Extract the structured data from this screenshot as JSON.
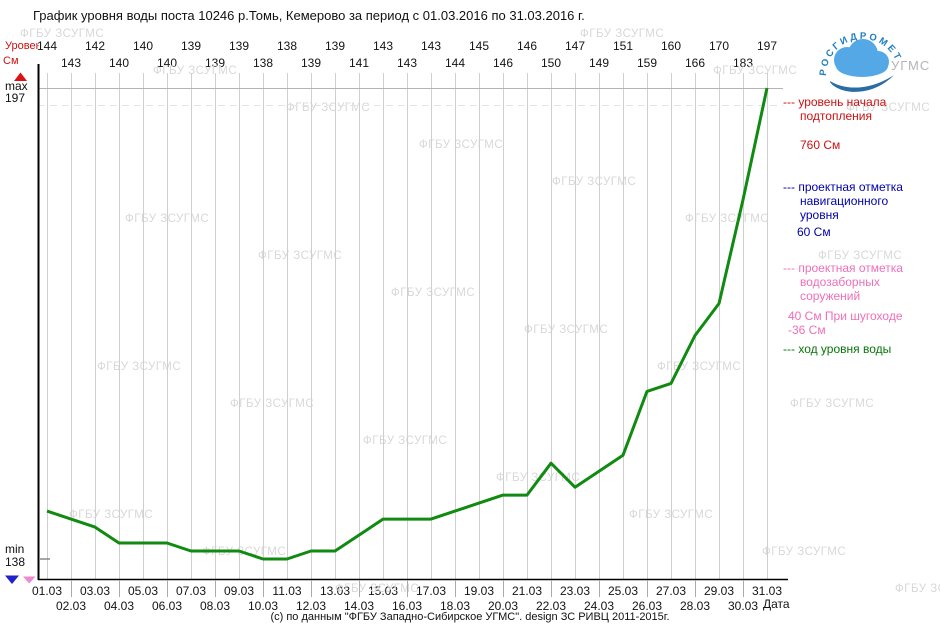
{
  "title": "График уровня воды поста 10246 р.Томь, Кемерово за период с 01.03.2016 по 31.03.2016 г.",
  "y_axis": {
    "label_line1": "Уровень",
    "label_line2": "См",
    "max_label": "max",
    "max_value": "197",
    "min_label": "min",
    "min_value": "138"
  },
  "x_axis": {
    "label": "Дата"
  },
  "legend": [
    {
      "color": "#cc1111",
      "dash": "---",
      "lines": [
        "уровень начала",
        "подтопления"
      ],
      "value_lines": [
        "760 См"
      ]
    },
    {
      "color": "#0000a8",
      "dash": "---",
      "lines": [
        "проектная отметка",
        "навигационного",
        "уровня"
      ],
      "value_lines": [
        "60 См"
      ]
    },
    {
      "color": "#ef6fb7",
      "dash": "---",
      "lines": [
        "проектная отметка",
        "водозаборных",
        "соружений"
      ],
      "value_lines": [
        "40 См При шугоходе",
        "-36 См"
      ]
    },
    {
      "color": "#077607",
      "dash": "---",
      "lines": [
        "ход уровня воды"
      ],
      "value_lines": []
    }
  ],
  "watermark": {
    "text": "ФГБУ ЗСУГМС",
    "color": "#d8d8d8"
  },
  "footer": "(с) по данным \"ФГБУ Западно-Сибирское УГМС\". design ЗС РИВЦ 2011-2015г.",
  "logo": {
    "arc_text": "РОСГИДРОМЕТ",
    "side_text": "УГМС"
  },
  "colors": {
    "line_green": "#118a11",
    "grid": "#cfcfcf",
    "axis": "#000000",
    "red": "#cc1111",
    "blue": "#0000a8",
    "pink": "#ef6fb7",
    "watermark": "#d8d8d8"
  },
  "chart_data": {
    "type": "line",
    "title": "График уровня воды поста 10246 р.Томь, Кемерово за период с 01.03.2016 по 31.03.2016 г.",
    "xlabel": "Дата",
    "ylabel": "Уровень См",
    "ylim": [
      138,
      197
    ],
    "grid": "vertical-daily",
    "legend_position": "right",
    "x_labels": [
      "01.03",
      "02.03",
      "03.03",
      "04.03",
      "05.03",
      "06.03",
      "07.03",
      "08.03",
      "09.03",
      "10.03",
      "11.03",
      "12.03",
      "13.03",
      "14.03",
      "15.03",
      "16.03",
      "17.03",
      "18.03",
      "19.03",
      "20.03",
      "21.03",
      "22.03",
      "23.03",
      "24.03",
      "25.03",
      "26.03",
      "27.03",
      "28.03",
      "29.03",
      "30.03",
      "31.03"
    ],
    "series": [
      {
        "name": "ход уровня воды",
        "color": "#118a11",
        "values": [
          144,
          143,
          142,
          140,
          140,
          140,
          139,
          139,
          139,
          138,
          138,
          139,
          139,
          141,
          143,
          143,
          143,
          144,
          145,
          146,
          146,
          150,
          147,
          149,
          151,
          159,
          160,
          166,
          170,
          183,
          197
        ]
      }
    ],
    "reference_levels": [
      {
        "name": "уровень начала подтопления",
        "value": 760,
        "unit": "См",
        "color": "#cc1111"
      },
      {
        "name": "проектная отметка навигационного уровня",
        "value": 60,
        "unit": "См",
        "color": "#0000a8"
      },
      {
        "name": "проектная отметка водозаборных соружений",
        "value": 40,
        "unit": "См",
        "note": "При шугоходе -36 См",
        "color": "#ef6fb7"
      }
    ]
  }
}
